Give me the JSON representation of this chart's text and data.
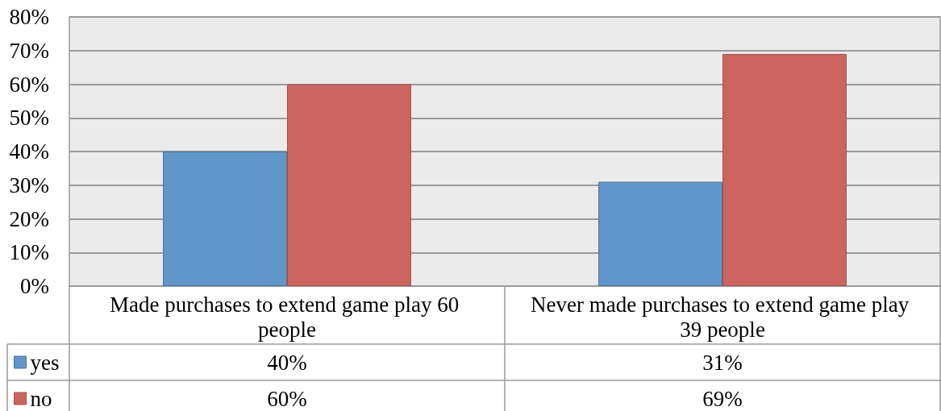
{
  "chart_data": {
    "type": "bar",
    "categories": [
      "Made purchases to extend game play 60 people",
      "Never made purchases to extend game play 39 people"
    ],
    "series": [
      {
        "name": "yes",
        "color": "#6096c9",
        "values": [
          40,
          31
        ],
        "value_labels": [
          "40%",
          "31%"
        ]
      },
      {
        "name": "no",
        "color": "#cc6560",
        "values": [
          60,
          69
        ],
        "value_labels": [
          "60%",
          "69%"
        ]
      }
    ],
    "ylim": [
      0,
      80
    ],
    "yticks": [
      {
        "value": 0,
        "label": "0%"
      },
      {
        "value": 10,
        "label": "10%"
      },
      {
        "value": 20,
        "label": "20%"
      },
      {
        "value": 30,
        "label": "30%"
      },
      {
        "value": 40,
        "label": "40%"
      },
      {
        "value": 50,
        "label": "50%"
      },
      {
        "value": 60,
        "label": "60%"
      },
      {
        "value": 70,
        "label": "70%"
      },
      {
        "value": 80,
        "label": "80%"
      }
    ],
    "grid": "y",
    "legend": "bottom left"
  }
}
